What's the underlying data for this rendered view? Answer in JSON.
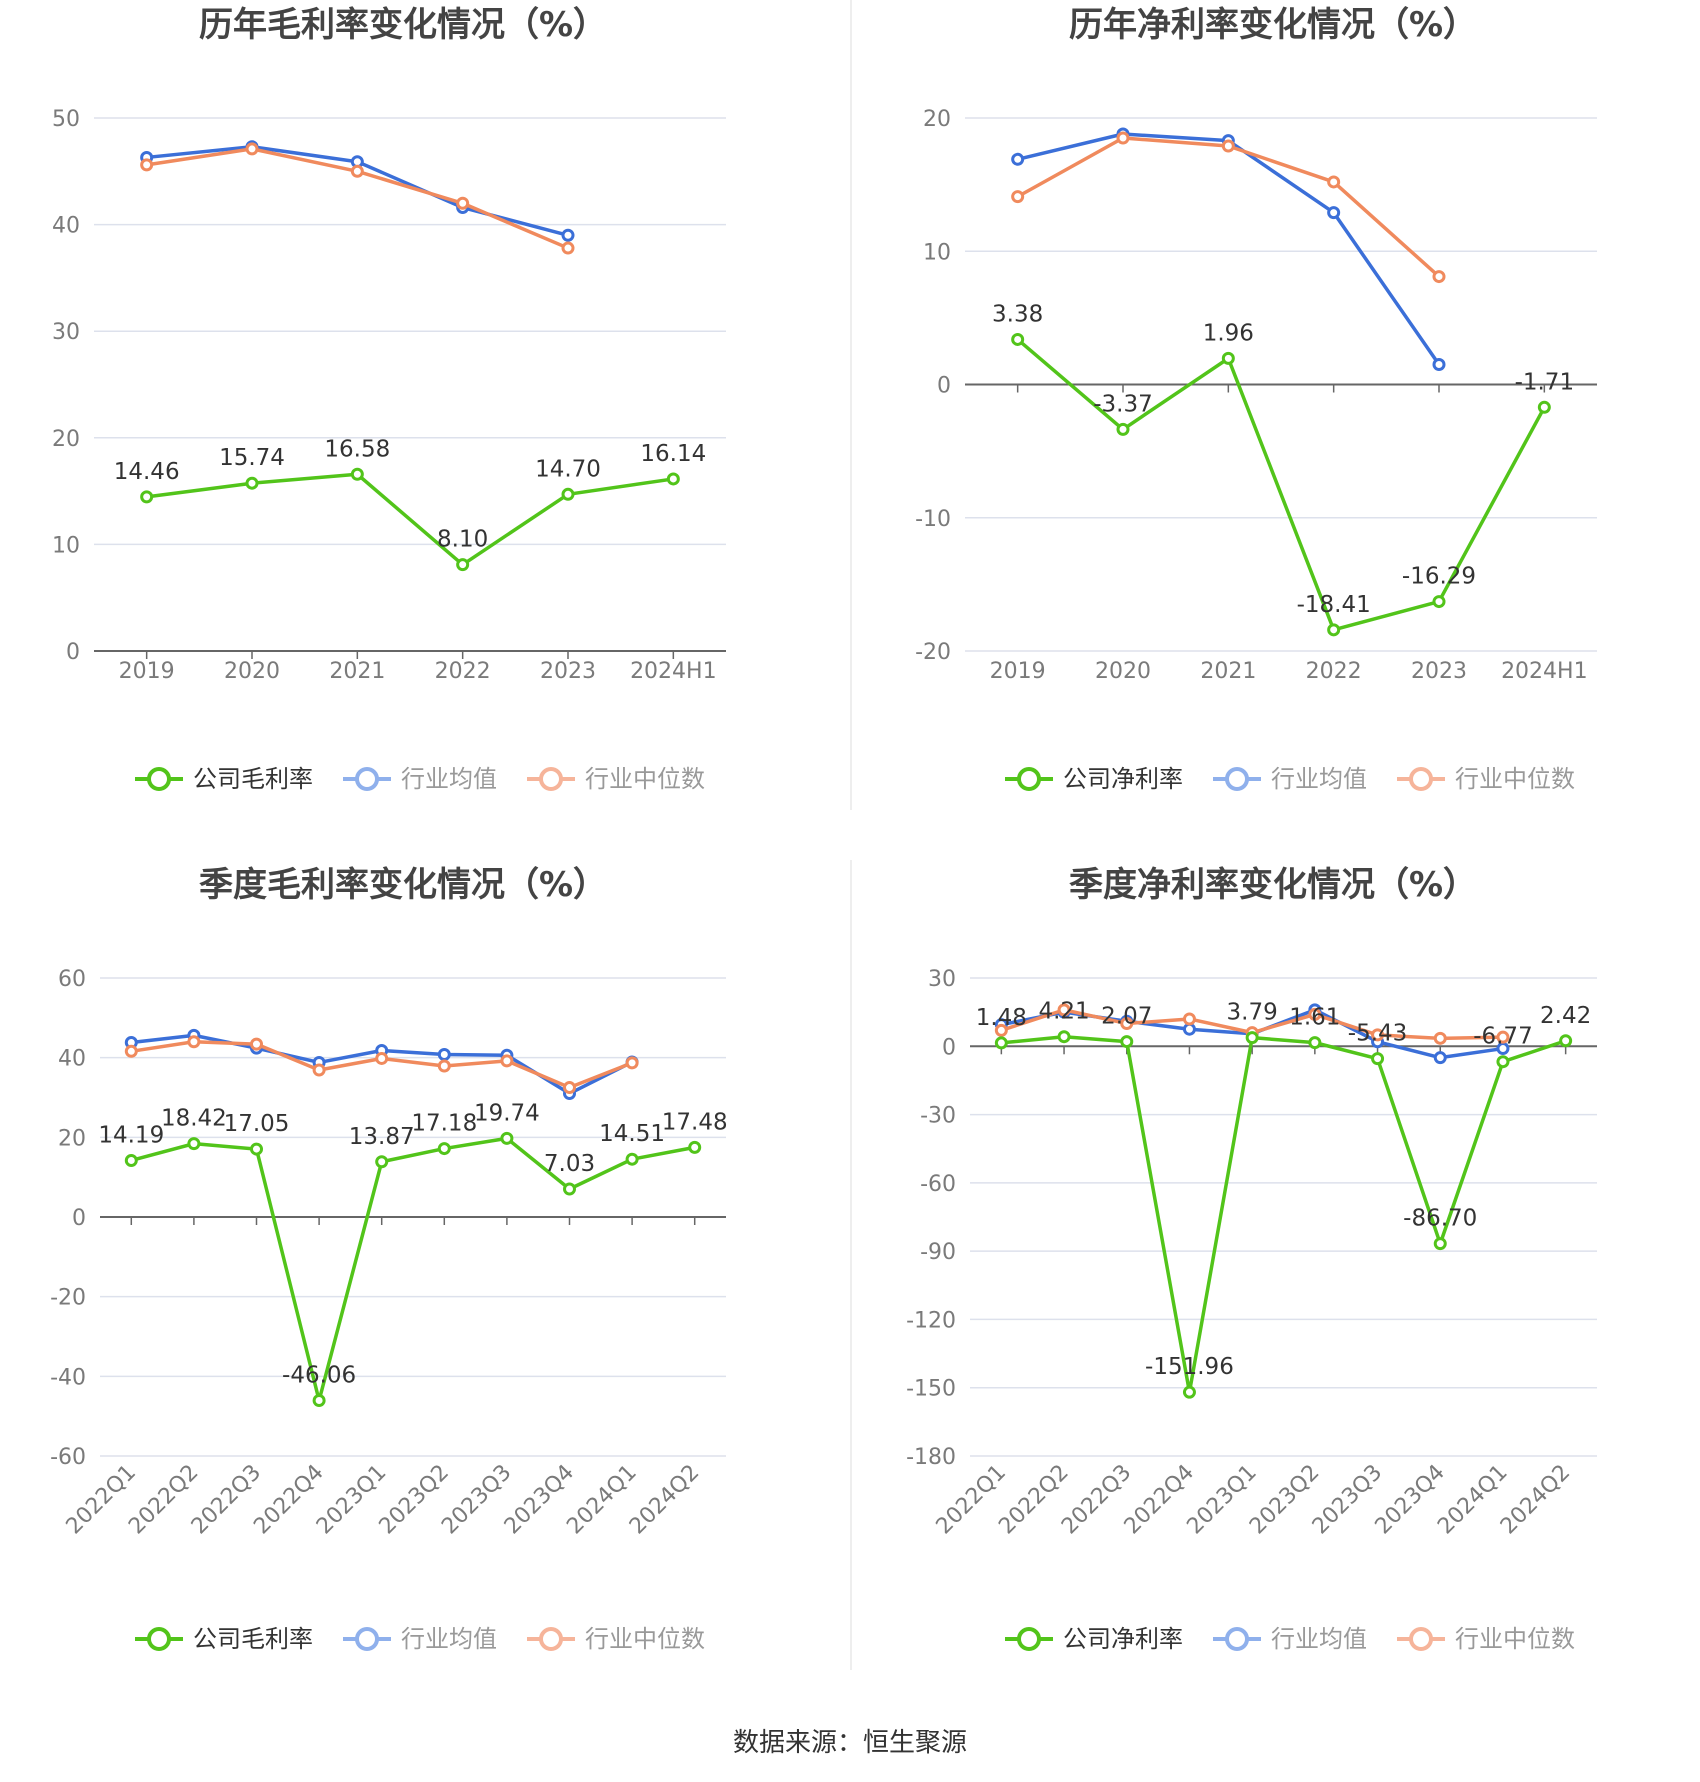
{
  "source_text": "数据来源：恒生聚源",
  "colors": {
    "company": "#52c41a",
    "average": "#3b6fd8",
    "median": "#f08a5d",
    "grid": "#dde1ec",
    "axis": "#666666",
    "tick_text": "#7a7a7a"
  },
  "chart_data": [
    {
      "type": "line",
      "title": "历年毛利率变化情况（%）",
      "categories": [
        "2019",
        "2020",
        "2021",
        "2022",
        "2023",
        "2024H1"
      ],
      "ylim": [
        0,
        50
      ],
      "yticks": [
        0,
        10,
        20,
        30,
        40,
        50
      ],
      "grid": true,
      "legend_position": "bottom",
      "series": [
        {
          "name": "公司毛利率",
          "color": "#52c41a",
          "labels": [
            "14.46",
            "15.74",
            "16.58",
            "8.10",
            "14.70",
            "16.14"
          ],
          "values": [
            14.46,
            15.74,
            16.58,
            8.1,
            14.7,
            16.14
          ]
        },
        {
          "name": "行业均值",
          "color": "#3b6fd8",
          "values": [
            46.3,
            47.3,
            45.9,
            41.6,
            39.0,
            null
          ]
        },
        {
          "name": "行业中位数",
          "color": "#f08a5d",
          "values": [
            45.6,
            47.1,
            45.0,
            42.0,
            37.8,
            null
          ]
        }
      ]
    },
    {
      "type": "line",
      "title": "历年净利率变化情况（%）",
      "categories": [
        "2019",
        "2020",
        "2021",
        "2022",
        "2023",
        "2024H1"
      ],
      "ylim": [
        -20,
        20
      ],
      "yticks": [
        -20,
        -10,
        0,
        10,
        20
      ],
      "grid": true,
      "legend_position": "bottom",
      "series": [
        {
          "name": "公司净利率",
          "color": "#52c41a",
          "labels": [
            "3.38",
            "-3.37",
            "1.96",
            "-18.41",
            "-16.29",
            "-1.71"
          ],
          "values": [
            3.38,
            -3.37,
            1.96,
            -18.41,
            -16.29,
            -1.71
          ]
        },
        {
          "name": "行业均值",
          "color": "#3b6fd8",
          "values": [
            16.9,
            18.8,
            18.3,
            12.9,
            1.5,
            null
          ]
        },
        {
          "name": "行业中位数",
          "color": "#f08a5d",
          "values": [
            14.1,
            18.5,
            17.9,
            15.2,
            8.1,
            null
          ]
        }
      ]
    },
    {
      "type": "line",
      "title": "季度毛利率变化情况（%）",
      "categories": [
        "2022Q1",
        "2022Q2",
        "2022Q3",
        "2022Q4",
        "2023Q1",
        "2023Q2",
        "2023Q3",
        "2023Q4",
        "2024Q1",
        "2024Q2"
      ],
      "ylim": [
        -60,
        60
      ],
      "yticks": [
        -60,
        -40,
        -20,
        0,
        20,
        40,
        60
      ],
      "grid": true,
      "legend_position": "bottom",
      "series": [
        {
          "name": "公司毛利率",
          "color": "#52c41a",
          "labels": [
            "14.19",
            "18.42",
            "17.05",
            "-46.06",
            "13.87",
            "17.18",
            "19.74",
            "7.03",
            "14.51",
            "17.48"
          ],
          "values": [
            14.19,
            18.42,
            17.05,
            -46.06,
            13.87,
            17.18,
            19.74,
            7.03,
            14.51,
            17.48
          ]
        },
        {
          "name": "行业均值",
          "color": "#3b6fd8",
          "values": [
            43.8,
            45.6,
            42.4,
            38.8,
            41.8,
            40.8,
            40.6,
            31.0,
            38.9,
            null
          ]
        },
        {
          "name": "行业中位数",
          "color": "#f08a5d",
          "values": [
            41.6,
            44.0,
            43.4,
            36.9,
            39.8,
            37.9,
            39.2,
            32.5,
            38.7,
            null
          ]
        }
      ]
    },
    {
      "type": "line",
      "title": "季度净利率变化情况（%）",
      "categories": [
        "2022Q1",
        "2022Q2",
        "2022Q3",
        "2022Q4",
        "2023Q1",
        "2023Q2",
        "2023Q3",
        "2023Q4",
        "2024Q1",
        "2024Q2"
      ],
      "ylim": [
        -180,
        30
      ],
      "yticks": [
        -180,
        -150,
        -120,
        -90,
        -60,
        -30,
        0,
        30
      ],
      "grid": true,
      "legend_position": "bottom",
      "series": [
        {
          "name": "公司净利率",
          "color": "#52c41a",
          "labels": [
            "1.48",
            "4.21",
            "2.07",
            "-151.96",
            "3.79",
            "1.61",
            "-5.43",
            "-86.70",
            "-6.77",
            "2.42"
          ],
          "values": [
            1.48,
            4.21,
            2.07,
            -151.96,
            3.79,
            1.61,
            -5.43,
            -86.7,
            -6.77,
            2.42
          ]
        },
        {
          "name": "行业均值",
          "color": "#3b6fd8",
          "values": [
            9.5,
            15.0,
            11.0,
            7.5,
            5.5,
            16.0,
            2.0,
            -5.0,
            -1.0,
            null
          ]
        },
        {
          "name": "行业中位数",
          "color": "#f08a5d",
          "values": [
            7.0,
            16.0,
            10.0,
            12.0,
            6.0,
            14.0,
            5.0,
            3.5,
            4.0,
            null
          ]
        }
      ]
    }
  ]
}
